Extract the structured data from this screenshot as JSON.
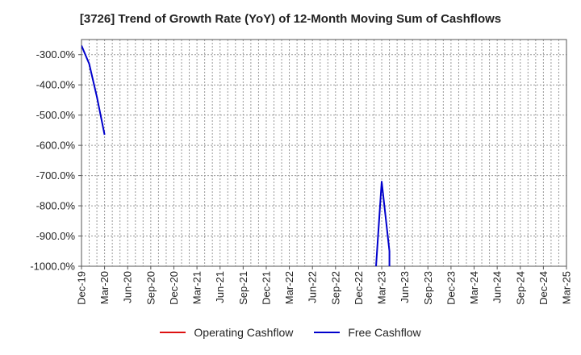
{
  "chart_data": {
    "type": "line",
    "title": "[3726]  Trend of Growth Rate (YoY) of 12-Month Moving Sum of Cashflows",
    "xlabel": "",
    "ylabel": "",
    "ylim": [
      -1000,
      -250
    ],
    "y_ticks": [
      -300,
      -400,
      -500,
      -600,
      -700,
      -800,
      -900,
      -1000
    ],
    "y_tick_labels": [
      "-300.0%",
      "-400.0%",
      "-500.0%",
      "-600.0%",
      "-700.0%",
      "-800.0%",
      "-900.0%",
      "-1000.0%"
    ],
    "x_tick_labels": [
      "Dec-19",
      "Mar-20",
      "Jun-20",
      "Sep-20",
      "Dec-20",
      "Mar-21",
      "Jun-21",
      "Sep-21",
      "Dec-21",
      "Mar-22",
      "Jun-22",
      "Sep-22",
      "Dec-22",
      "Mar-23",
      "Jun-23",
      "Sep-23",
      "Dec-23",
      "Mar-24",
      "Jun-24",
      "Sep-24",
      "Dec-24",
      "Mar-25"
    ],
    "grid": true,
    "legend_position": "bottom",
    "series": [
      {
        "name": "Operating Cashflow",
        "color": "#dd1111",
        "points": []
      },
      {
        "name": "Free Cashflow",
        "color": "#0000cc",
        "segments": [
          [
            {
              "x": "Dec-19",
              "y": -270
            },
            {
              "x": "Jan-20",
              "y": -330
            },
            {
              "x": "Feb-20",
              "y": -440
            },
            {
              "x": "Mar-20",
              "y": -565
            }
          ],
          [
            {
              "x": "Feb-23",
              "y": -1100
            },
            {
              "x": "Mar-23",
              "y": -720
            },
            {
              "x": "Apr-23",
              "y": -950
            },
            {
              "x": "Apr-23",
              "y": -1100
            }
          ]
        ]
      }
    ]
  }
}
